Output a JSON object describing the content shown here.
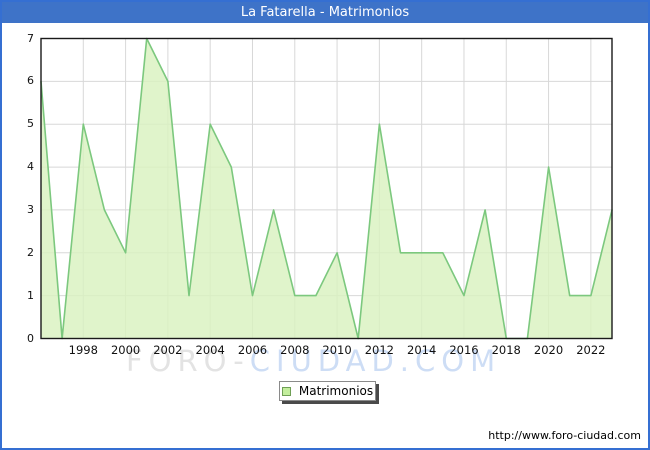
{
  "window": {
    "title": "La Fatarella - Matrimonios"
  },
  "chart_data": {
    "type": "area",
    "title": "La Fatarella - Matrimonios",
    "xlabel": "",
    "ylabel": "",
    "years": [
      1996,
      1997,
      1998,
      1999,
      2000,
      2001,
      2002,
      2003,
      2004,
      2005,
      2006,
      2007,
      2008,
      2009,
      2010,
      2011,
      2012,
      2013,
      2014,
      2015,
      2016,
      2017,
      2018,
      2019,
      2020,
      2021,
      2022,
      2023
    ],
    "series": [
      {
        "name": "Matrimonios",
        "values": [
          6,
          0,
          5,
          3,
          2,
          7,
          6,
          1,
          5,
          4,
          1,
          3,
          1,
          1,
          2,
          0,
          5,
          2,
          2,
          2,
          1,
          3,
          0,
          0,
          4,
          1,
          1,
          3
        ]
      }
    ],
    "ylim": [
      0,
      7
    ],
    "yticks": [
      0,
      1,
      2,
      3,
      4,
      5,
      6,
      7
    ],
    "xticks": [
      1998,
      2000,
      2002,
      2004,
      2006,
      2008,
      2010,
      2012,
      2014,
      2016,
      2018,
      2020,
      2022
    ],
    "grid": true,
    "legend_position": "bottom-center"
  },
  "legend": {
    "label": "Matrimonios"
  },
  "watermark": {
    "part1": "FORO-",
    "part2": "CIUDAD.COM"
  },
  "footer": {
    "url": "http://www.foro-ciudad.com"
  },
  "colors": {
    "titlebar_blue": "#3e73c8",
    "frame_border_blue": "#356fd2",
    "area_fill_green": "#d9f2c0",
    "line_green": "#7cc87e",
    "grid_gray": "#d8d8d8",
    "plot_border": "#1a1a1a",
    "watermark_gray": "#e3e3e3",
    "watermark_blue": "#cdddf5"
  }
}
